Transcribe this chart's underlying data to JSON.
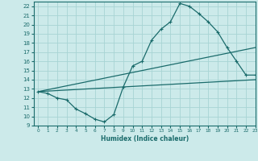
{
  "bg_color": "#cceaea",
  "grid_color": "#a8d4d4",
  "line_color": "#1a6b6b",
  "xlabel": "Humidex (Indice chaleur)",
  "xlim": [
    -0.5,
    23
  ],
  "ylim": [
    9,
    22.5
  ],
  "yticks": [
    9,
    10,
    11,
    12,
    13,
    14,
    15,
    16,
    17,
    18,
    19,
    20,
    21,
    22
  ],
  "xticks": [
    0,
    1,
    2,
    3,
    4,
    5,
    6,
    7,
    8,
    9,
    10,
    11,
    12,
    13,
    14,
    15,
    16,
    17,
    18,
    19,
    20,
    21,
    22,
    23
  ],
  "line1_x": [
    0,
    1,
    2,
    3,
    4,
    5,
    6,
    7,
    8,
    9,
    10,
    11,
    12,
    13,
    14,
    15,
    16,
    17,
    18,
    19,
    20,
    21,
    22,
    23
  ],
  "line1_y": [
    12.7,
    12.5,
    12.0,
    11.8,
    10.8,
    10.3,
    9.7,
    9.4,
    10.2,
    13.2,
    15.5,
    16.0,
    18.3,
    19.5,
    20.3,
    22.3,
    22.0,
    21.2,
    20.3,
    19.2,
    17.5,
    16.0,
    14.5,
    14.5
  ],
  "line2_x": [
    0,
    23
  ],
  "line2_y": [
    12.7,
    14.0
  ],
  "line3_x": [
    0,
    23
  ],
  "line3_y": [
    12.7,
    17.5
  ],
  "markersize": 2.5,
  "linewidth": 0.9
}
